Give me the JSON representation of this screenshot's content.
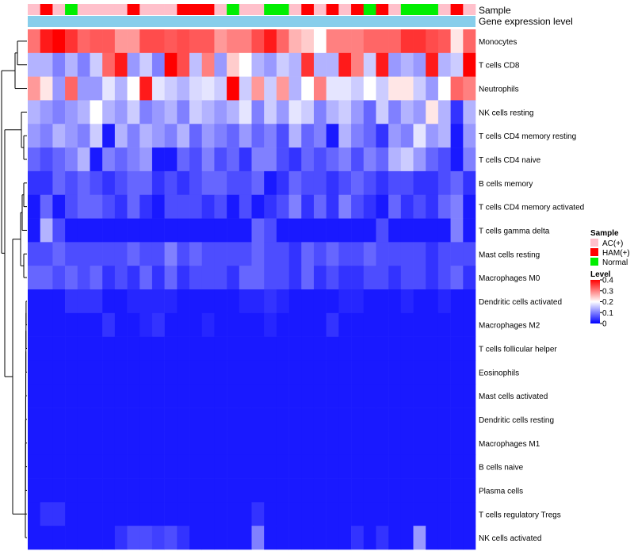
{
  "chart_data": {
    "type": "heatmap",
    "title": "",
    "annotation_tracks": [
      {
        "label": "Sample"
      },
      {
        "label": "Gene expression level"
      }
    ],
    "sample_groups": [
      "AC(+)",
      "HAM(+)",
      "AC(+)",
      "Normal",
      "AC(+)",
      "AC(+)",
      "AC(+)",
      "AC(+)",
      "HAM(+)",
      "AC(+)",
      "AC(+)",
      "AC(+)",
      "HAM(+)",
      "HAM(+)",
      "HAM(+)",
      "AC(+)",
      "Normal",
      "AC(+)",
      "AC(+)",
      "Normal",
      "Normal",
      "AC(+)",
      "HAM(+)",
      "AC(+)",
      "HAM(+)",
      "AC(+)",
      "HAM(+)",
      "Normal",
      "HAM(+)",
      "AC(+)",
      "Normal",
      "Normal",
      "Normal",
      "AC(+)",
      "HAM(+)",
      "AC(+)"
    ],
    "gene_expression_color": "#87CEEB",
    "row_labels": [
      "Monocytes",
      "T cells CD8",
      "Neutrophils",
      "NK cells resting",
      "T cells CD4 memory resting",
      "T cells CD4 naive",
      "B cells memory",
      "T cells CD4 memory activated",
      "T cells gamma delta",
      "Mast cells resting",
      "Macrophages M0",
      "Dendritic cells activated",
      "Macrophages M2",
      "T cells follicular helper",
      "Eosinophils",
      "Mast cells activated",
      "Dendritic cells resting",
      "Macrophages M1",
      "B cells naive",
      "Plasma cells",
      "T cells regulatory  Tregs",
      "NK cells activated"
    ],
    "values": [
      [
        0.31,
        0.38,
        0.4,
        0.36,
        0.32,
        0.33,
        0.33,
        0.28,
        0.28,
        0.34,
        0.34,
        0.33,
        0.34,
        0.33,
        0.33,
        0.28,
        0.3,
        0.3,
        0.34,
        0.38,
        0.32,
        0.26,
        0.24,
        0.2,
        0.3,
        0.3,
        0.3,
        0.32,
        0.32,
        0.32,
        0.36,
        0.36,
        0.34,
        0.33,
        0.22,
        0.32
      ],
      [
        0.14,
        0.14,
        0.1,
        0.14,
        0.1,
        0.16,
        0.32,
        0.38,
        0.12,
        0.16,
        0.1,
        0.4,
        0.34,
        0.15,
        0.3,
        0.12,
        0.24,
        0.2,
        0.14,
        0.12,
        0.16,
        0.14,
        0.36,
        0.14,
        0.14,
        0.38,
        0.3,
        0.16,
        0.38,
        0.12,
        0.14,
        0.12,
        0.38,
        0.14,
        0.16,
        0.4
      ],
      [
        0.28,
        0.22,
        0.12,
        0.32,
        0.12,
        0.12,
        0.18,
        0.14,
        0.2,
        0.38,
        0.18,
        0.16,
        0.14,
        0.17,
        0.18,
        0.16,
        0.4,
        0.16,
        0.28,
        0.16,
        0.28,
        0.14,
        0.2,
        0.3,
        0.18,
        0.18,
        0.16,
        0.2,
        0.16,
        0.22,
        0.22,
        0.16,
        0.12,
        0.2,
        0.32,
        0.3
      ],
      [
        0.14,
        0.12,
        0.1,
        0.12,
        0.14,
        0.2,
        0.14,
        0.12,
        0.16,
        0.1,
        0.12,
        0.14,
        0.1,
        0.16,
        0.14,
        0.12,
        0.14,
        0.18,
        0.1,
        0.16,
        0.12,
        0.18,
        0.16,
        0.1,
        0.14,
        0.16,
        0.12,
        0.08,
        0.16,
        0.1,
        0.14,
        0.12,
        0.22,
        0.14,
        0.04,
        0.14
      ],
      [
        0.12,
        0.1,
        0.14,
        0.12,
        0.1,
        0.16,
        0.02,
        0.14,
        0.1,
        0.14,
        0.12,
        0.1,
        0.14,
        0.08,
        0.12,
        0.1,
        0.08,
        0.12,
        0.08,
        0.1,
        0.06,
        0.14,
        0.08,
        0.1,
        0.02,
        0.14,
        0.1,
        0.08,
        0.04,
        0.12,
        0.1,
        0.18,
        0.12,
        0.14,
        0.02,
        0.12
      ],
      [
        0.08,
        0.06,
        0.08,
        0.1,
        0.14,
        0.02,
        0.1,
        0.08,
        0.1,
        0.12,
        0.02,
        0.02,
        0.08,
        0.06,
        0.1,
        0.06,
        0.08,
        0.04,
        0.1,
        0.1,
        0.06,
        0.04,
        0.08,
        0.06,
        0.08,
        0.1,
        0.06,
        0.1,
        0.08,
        0.14,
        0.16,
        0.12,
        0.08,
        0.06,
        0.02,
        0.1
      ],
      [
        0.04,
        0.04,
        0.08,
        0.06,
        0.08,
        0.06,
        0.04,
        0.06,
        0.08,
        0.08,
        0.04,
        0.06,
        0.04,
        0.06,
        0.08,
        0.08,
        0.06,
        0.06,
        0.08,
        0.02,
        0.04,
        0.08,
        0.06,
        0.06,
        0.04,
        0.06,
        0.08,
        0.06,
        0.04,
        0.06,
        0.06,
        0.04,
        0.04,
        0.06,
        0.08,
        0.04
      ],
      [
        0.02,
        0.08,
        0.02,
        0.06,
        0.08,
        0.08,
        0.06,
        0.04,
        0.08,
        0.04,
        0.02,
        0.06,
        0.06,
        0.06,
        0.04,
        0.06,
        0.02,
        0.06,
        0.02,
        0.04,
        0.06,
        0.1,
        0.04,
        0.08,
        0.04,
        0.1,
        0.06,
        0.04,
        0.02,
        0.08,
        0.04,
        0.06,
        0.04,
        0.08,
        0.1,
        0.02
      ],
      [
        0.02,
        0.14,
        0.06,
        0.02,
        0.02,
        0.02,
        0.02,
        0.02,
        0.02,
        0.02,
        0.02,
        0.02,
        0.02,
        0.02,
        0.02,
        0.02,
        0.02,
        0.02,
        0.08,
        0.06,
        0.02,
        0.02,
        0.02,
        0.02,
        0.02,
        0.02,
        0.02,
        0.02,
        0.06,
        0.02,
        0.02,
        0.02,
        0.02,
        0.02,
        0.1,
        0.02
      ],
      [
        0.06,
        0.06,
        0.08,
        0.06,
        0.06,
        0.06,
        0.06,
        0.06,
        0.08,
        0.06,
        0.06,
        0.1,
        0.06,
        0.08,
        0.06,
        0.06,
        0.06,
        0.06,
        0.08,
        0.06,
        0.06,
        0.04,
        0.08,
        0.06,
        0.08,
        0.06,
        0.06,
        0.08,
        0.06,
        0.06,
        0.06,
        0.06,
        0.04,
        0.06,
        0.06,
        0.06
      ],
      [
        0.08,
        0.08,
        0.06,
        0.08,
        0.06,
        0.08,
        0.04,
        0.06,
        0.04,
        0.08,
        0.04,
        0.08,
        0.04,
        0.06,
        0.06,
        0.06,
        0.04,
        0.08,
        0.08,
        0.06,
        0.06,
        0.04,
        0.08,
        0.04,
        0.06,
        0.04,
        0.04,
        0.06,
        0.06,
        0.04,
        0.06,
        0.06,
        0.04,
        0.06,
        0.08,
        0.04
      ],
      [
        0.02,
        0.02,
        0.02,
        0.04,
        0.04,
        0.04,
        0.02,
        0.02,
        0.03,
        0.03,
        0.03,
        0.03,
        0.02,
        0.02,
        0.02,
        0.02,
        0.02,
        0.03,
        0.03,
        0.04,
        0.03,
        0.02,
        0.02,
        0.02,
        0.02,
        0.03,
        0.03,
        0.02,
        0.02,
        0.02,
        0.03,
        0.02,
        0.02,
        0.03,
        0.02,
        0.02
      ],
      [
        0.02,
        0.02,
        0.02,
        0.02,
        0.02,
        0.02,
        0.04,
        0.02,
        0.02,
        0.03,
        0.04,
        0.02,
        0.02,
        0.02,
        0.03,
        0.02,
        0.02,
        0.02,
        0.02,
        0.03,
        0.02,
        0.02,
        0.02,
        0.02,
        0.04,
        0.02,
        0.02,
        0.02,
        0.02,
        0.02,
        0.02,
        0.02,
        0.02,
        0.02,
        0.02,
        0.02
      ],
      [
        0.02,
        0.02,
        0.02,
        0.02,
        0.02,
        0.02,
        0.02,
        0.02,
        0.02,
        0.02,
        0.02,
        0.02,
        0.02,
        0.02,
        0.02,
        0.02,
        0.02,
        0.02,
        0.02,
        0.02,
        0.02,
        0.02,
        0.02,
        0.02,
        0.02,
        0.02,
        0.02,
        0.02,
        0.02,
        0.02,
        0.02,
        0.02,
        0.02,
        0.02,
        0.02,
        0.02
      ],
      [
        0.02,
        0.02,
        0.02,
        0.02,
        0.02,
        0.02,
        0.02,
        0.02,
        0.02,
        0.02,
        0.02,
        0.02,
        0.02,
        0.02,
        0.02,
        0.02,
        0.02,
        0.02,
        0.02,
        0.02,
        0.02,
        0.02,
        0.02,
        0.02,
        0.02,
        0.02,
        0.02,
        0.02,
        0.02,
        0.02,
        0.02,
        0.02,
        0.02,
        0.02,
        0.02,
        0.02
      ],
      [
        0.02,
        0.02,
        0.02,
        0.02,
        0.02,
        0.02,
        0.02,
        0.02,
        0.02,
        0.02,
        0.02,
        0.02,
        0.02,
        0.02,
        0.02,
        0.02,
        0.02,
        0.02,
        0.02,
        0.02,
        0.02,
        0.02,
        0.02,
        0.02,
        0.02,
        0.02,
        0.02,
        0.02,
        0.02,
        0.02,
        0.02,
        0.02,
        0.02,
        0.02,
        0.02,
        0.02
      ],
      [
        0.02,
        0.02,
        0.02,
        0.02,
        0.02,
        0.02,
        0.02,
        0.02,
        0.02,
        0.02,
        0.02,
        0.02,
        0.02,
        0.02,
        0.02,
        0.02,
        0.02,
        0.02,
        0.02,
        0.02,
        0.02,
        0.02,
        0.02,
        0.02,
        0.02,
        0.02,
        0.02,
        0.02,
        0.02,
        0.02,
        0.02,
        0.02,
        0.02,
        0.02,
        0.02,
        0.02
      ],
      [
        0.02,
        0.02,
        0.02,
        0.02,
        0.02,
        0.02,
        0.02,
        0.02,
        0.02,
        0.02,
        0.02,
        0.02,
        0.02,
        0.02,
        0.02,
        0.02,
        0.02,
        0.02,
        0.02,
        0.02,
        0.02,
        0.02,
        0.02,
        0.02,
        0.02,
        0.02,
        0.02,
        0.02,
        0.02,
        0.02,
        0.02,
        0.02,
        0.02,
        0.02,
        0.02,
        0.02
      ],
      [
        0.02,
        0.02,
        0.02,
        0.02,
        0.02,
        0.02,
        0.02,
        0.02,
        0.02,
        0.02,
        0.02,
        0.02,
        0.02,
        0.02,
        0.02,
        0.02,
        0.02,
        0.02,
        0.02,
        0.02,
        0.02,
        0.02,
        0.02,
        0.02,
        0.02,
        0.02,
        0.02,
        0.02,
        0.02,
        0.02,
        0.02,
        0.02,
        0.02,
        0.02,
        0.02,
        0.02
      ],
      [
        0.02,
        0.02,
        0.02,
        0.02,
        0.02,
        0.02,
        0.02,
        0.02,
        0.02,
        0.02,
        0.02,
        0.02,
        0.02,
        0.02,
        0.02,
        0.02,
        0.02,
        0.02,
        0.02,
        0.02,
        0.02,
        0.02,
        0.02,
        0.02,
        0.02,
        0.02,
        0.02,
        0.02,
        0.02,
        0.02,
        0.02,
        0.02,
        0.02,
        0.02,
        0.02,
        0.02
      ],
      [
        0.02,
        0.04,
        0.04,
        0.02,
        0.02,
        0.02,
        0.02,
        0.02,
        0.02,
        0.02,
        0.02,
        0.02,
        0.02,
        0.02,
        0.02,
        0.02,
        0.02,
        0.02,
        0.04,
        0.02,
        0.02,
        0.02,
        0.02,
        0.02,
        0.02,
        0.02,
        0.02,
        0.02,
        0.02,
        0.02,
        0.02,
        0.02,
        0.02,
        0.02,
        0.02,
        0.02
      ],
      [
        0.02,
        0.02,
        0.02,
        0.02,
        0.02,
        0.02,
        0.02,
        0.04,
        0.06,
        0.06,
        0.05,
        0.06,
        0.04,
        0.02,
        0.02,
        0.02,
        0.02,
        0.02,
        0.1,
        0.02,
        0.02,
        0.02,
        0.02,
        0.02,
        0.02,
        0.02,
        0.04,
        0.02,
        0.04,
        0.02,
        0.02,
        0.12,
        0.02,
        0.02,
        0.02,
        0.02
      ]
    ],
    "color_scale": {
      "min": 0,
      "max": 0.4,
      "stops": [
        {
          "value": 0,
          "color": "#0000FF"
        },
        {
          "value": 0.2,
          "color": "#FFFFFF"
        },
        {
          "value": 0.4,
          "color": "#FF0000"
        }
      ]
    },
    "legend": {
      "sample": {
        "title": "Sample",
        "entries": [
          {
            "label": "AC(+)",
            "color": "#FFC0CB"
          },
          {
            "label": "HAM(+)",
            "color": "#FF0000"
          },
          {
            "label": "Normal",
            "color": "#00EE00"
          }
        ]
      },
      "level": {
        "title": "Level",
        "ticks": [
          0.4,
          0.3,
          0.2,
          0.1,
          0
        ]
      },
      "placement": "right"
    },
    "row_dendrogram": true
  }
}
